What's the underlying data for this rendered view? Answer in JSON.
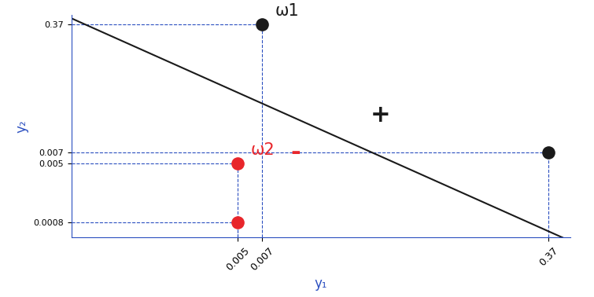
{
  "chart_data": {
    "type": "scatter",
    "xlabel": "y₁",
    "ylabel": "y₂",
    "log": true,
    "grid": false,
    "xlim": [
      0.0005,
      0.5
    ],
    "ylim": [
      0.0005,
      0.5
    ],
    "xticks": [
      0.005,
      0.007,
      0.37
    ],
    "yticks": [
      0.0008,
      0.005,
      0.007,
      0.37
    ],
    "series": [
      {
        "name": "ω1",
        "color": "#1a1a1a",
        "marker": "o",
        "x": [
          0.007,
          0.37
        ],
        "values": [
          0.37,
          0.007
        ]
      },
      {
        "name": "ω2",
        "color": "#e8262b",
        "marker": "o",
        "x": [
          0.005,
          0.005
        ],
        "values": [
          0.005,
          0.0008
        ]
      },
      {
        "type": "line",
        "color": "#1a1a1a",
        "line_style": "solid",
        "x": [
          0.0005,
          0.45
        ],
        "values": [
          0.45,
          0.0005
        ]
      }
    ],
    "annotations": [
      {
        "text": "+",
        "color": "#1a1a1a"
      },
      {
        "text": "-",
        "color": "#e8262b"
      }
    ]
  }
}
